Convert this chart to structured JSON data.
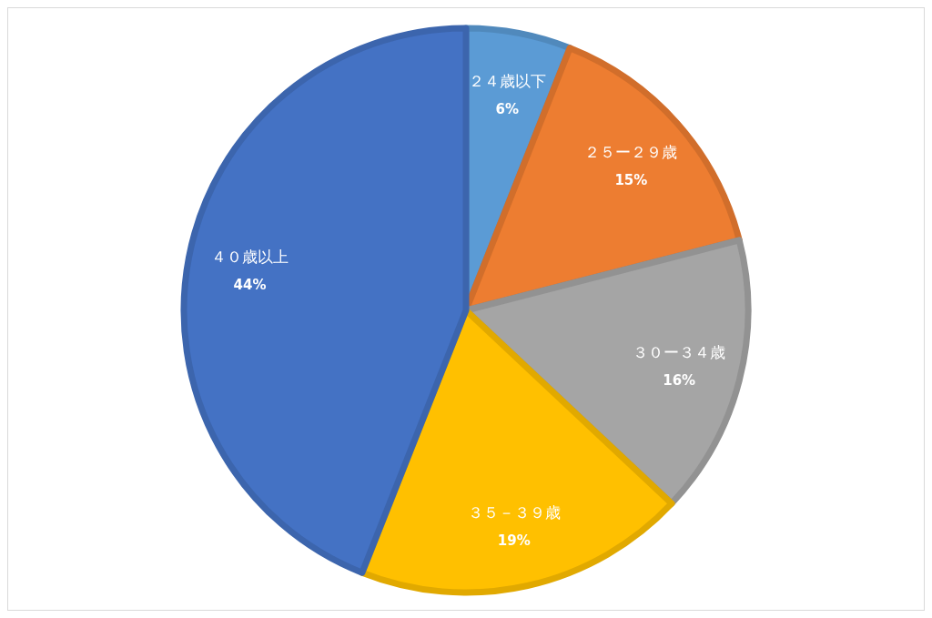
{
  "chart_data": {
    "type": "pie",
    "categories": [
      "２４歳以下",
      "２５ー２９歳",
      "３０ー３４歳",
      "３５－３９歳",
      "４０歳以上"
    ],
    "values": [
      6,
      15,
      16,
      19,
      44
    ],
    "colors": [
      "#5b9bd5",
      "#ed7d31",
      "#a5a5a5",
      "#ffc000",
      "#4472c4"
    ],
    "value_labels": [
      "6%",
      "15%",
      "16%",
      "19%",
      "44%"
    ],
    "legend": false
  }
}
